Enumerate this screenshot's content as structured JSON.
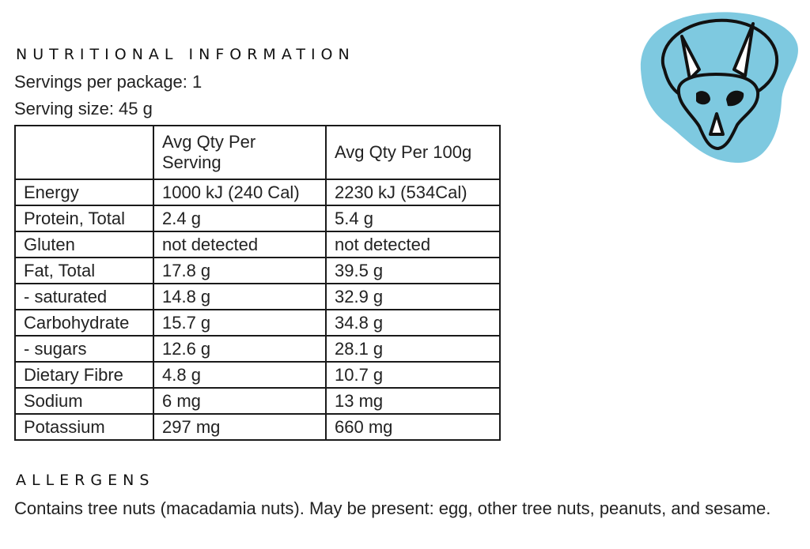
{
  "header": {
    "title": "NUTRITIONAL INFORMATION",
    "servings_per_package": "Servings per package: 1",
    "serving_size": "Serving size: 45 g"
  },
  "table": {
    "columns": [
      "",
      "Avg Qty Per Serving",
      "Avg Qty Per 100g"
    ],
    "rows": [
      [
        "Energy",
        "1000 kJ (240 Cal)",
        "2230 kJ (534Cal)"
      ],
      [
        "Protein, Total",
        "2.4 g",
        "5.4 g"
      ],
      [
        "Gluten",
        "not detected",
        "not detected"
      ],
      [
        "Fat, Total",
        "17.8 g",
        "39.5 g"
      ],
      [
        "- saturated",
        "14.8 g",
        "32.9 g"
      ],
      [
        "Carbohydrate",
        "15.7 g",
        "34.8 g"
      ],
      [
        "- sugars",
        "12.6 g",
        "28.1 g"
      ],
      [
        "Dietary Fibre",
        "4.8 g",
        "10.7 g"
      ],
      [
        "Sodium",
        "6 mg",
        "13 mg"
      ],
      [
        "Potassium",
        "297 mg",
        "660 mg"
      ]
    ]
  },
  "allergens": {
    "title": "ALLERGENS",
    "text": "Contains tree nuts (macadamia nuts). May be present: egg, other tree nuts, peanuts, and sesame."
  },
  "logo": {
    "icon": "triceratops-skull-icon",
    "colors": {
      "blob": "#7ec9e0",
      "outline": "#111111",
      "fill": "#ffffff"
    }
  }
}
